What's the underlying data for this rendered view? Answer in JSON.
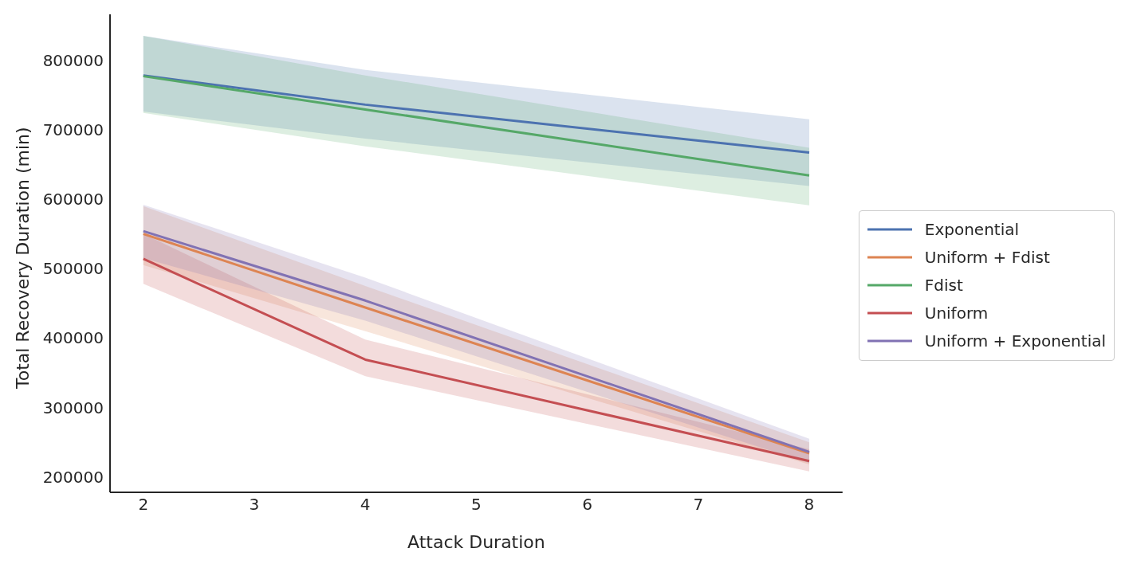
{
  "chart_data": {
    "type": "line",
    "xlabel": "Attack Duration",
    "ylabel": "Total Recovery Duration (min)",
    "x": [
      2,
      4,
      8
    ],
    "xlim": [
      1.7,
      8.3
    ],
    "xticks": [
      2,
      3,
      4,
      5,
      6,
      7,
      8
    ],
    "ylim": [
      178000,
      866000
    ],
    "yticks": [
      200000,
      300000,
      400000,
      500000,
      600000,
      700000,
      800000
    ],
    "grid": false,
    "legend": "right",
    "marker": "none",
    "line_style": "solid",
    "series": [
      {
        "name": "Exponential",
        "color": "#4c72b0",
        "values": [
          778000,
          736000,
          667000
        ],
        "lower": [
          726000,
          687000,
          619000
        ],
        "upper": [
          835000,
          786000,
          715000
        ]
      },
      {
        "name": "Uniform + Fdist",
        "color": "#dd8452",
        "values": [
          550000,
          444000,
          234000
        ],
        "lower": [
          505000,
          410000,
          218000
        ],
        "upper": [
          590000,
          475000,
          250000
        ]
      },
      {
        "name": "Fdist",
        "color": "#55a868",
        "values": [
          777000,
          729000,
          634000
        ],
        "lower": [
          724000,
          676000,
          591000
        ],
        "upper": [
          835000,
          778000,
          674000
        ]
      },
      {
        "name": "Uniform",
        "color": "#c44e52",
        "values": [
          514000,
          369000,
          223000
        ],
        "lower": [
          478000,
          345000,
          208000
        ],
        "upper": [
          550000,
          398000,
          240000
        ]
      },
      {
        "name": "Uniform + Exponential",
        "color": "#8172b3",
        "values": [
          554000,
          454000,
          236000
        ],
        "lower": [
          515000,
          425000,
          220000
        ],
        "upper": [
          592000,
          487000,
          255000
        ]
      }
    ]
  }
}
